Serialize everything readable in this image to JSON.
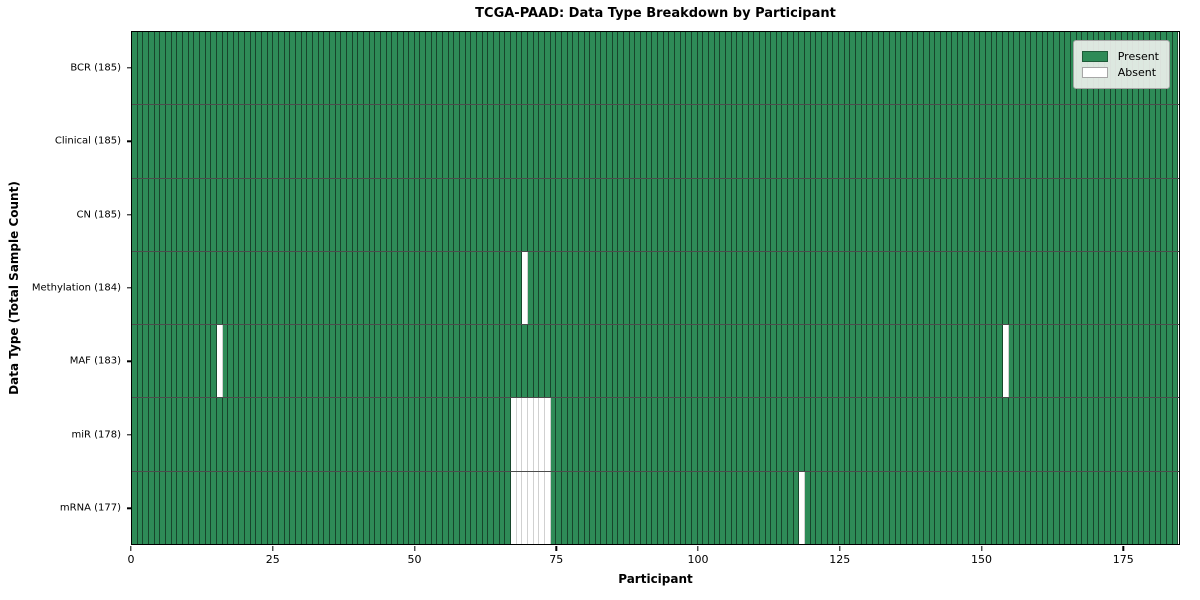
{
  "figure": {
    "title": "TCGA-PAAD: Data Type Breakdown by Participant",
    "xlabel": "Participant",
    "ylabel": "Data Type (Total Sample Count)"
  },
  "legend": {
    "items": [
      {
        "label": "Present",
        "color": "#2e8b57"
      },
      {
        "label": "Absent",
        "color": "#ffffff"
      }
    ],
    "position": "upper right"
  },
  "chart_data": {
    "type": "heatmap",
    "title": "TCGA-PAAD: Data Type Breakdown by Participant",
    "xlabel": "Participant",
    "ylabel": "Data Type (Total Sample Count)",
    "n_participants": 185,
    "xlim": [
      0,
      185
    ],
    "x_ticks": [
      0,
      25,
      50,
      75,
      100,
      125,
      150,
      175
    ],
    "grid": false,
    "present_color": "#2e8b57",
    "absent_color": "#ffffff",
    "rows": [
      {
        "label": "BCR",
        "total": 185,
        "ytick_label": "BCR (185)",
        "absent_participants": []
      },
      {
        "label": "Clinical",
        "total": 185,
        "ytick_label": "Clinical (185)",
        "absent_participants": []
      },
      {
        "label": "CN",
        "total": 185,
        "ytick_label": "CN (185)",
        "absent_participants": []
      },
      {
        "label": "Methylation",
        "total": 184,
        "ytick_label": "Methylation (184)",
        "absent_participants": [
          69
        ]
      },
      {
        "label": "MAF",
        "total": 183,
        "ytick_label": "MAF (183)",
        "absent_participants": [
          15,
          154
        ]
      },
      {
        "label": "miR",
        "total": 178,
        "ytick_label": "miR (178)",
        "absent_participants": [
          67,
          68,
          69,
          70,
          71,
          72,
          73
        ]
      },
      {
        "label": "mRNA",
        "total": 177,
        "ytick_label": "mRNA (177)",
        "absent_participants": [
          67,
          68,
          69,
          70,
          71,
          72,
          73,
          118
        ]
      }
    ]
  }
}
